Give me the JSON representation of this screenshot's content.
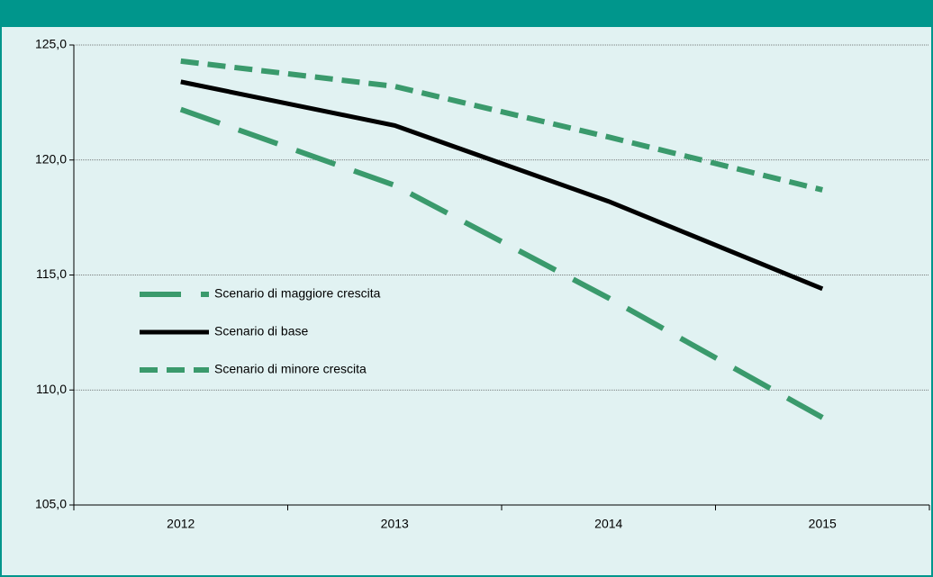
{
  "chart_data": {
    "type": "line",
    "categories": [
      "2012",
      "2013",
      "2014",
      "2015"
    ],
    "series": [
      {
        "name": "Scenario di maggiore crescita",
        "color": "#3a9a6c",
        "style": "long-dash",
        "values": [
          122.2,
          118.9,
          114.0,
          108.8
        ]
      },
      {
        "name": "Scenario di base",
        "color": "#000000",
        "style": "solid",
        "values": [
          123.4,
          121.5,
          118.2,
          114.4
        ]
      },
      {
        "name": "Scenario di minore crescita",
        "color": "#3a9a6c",
        "style": "short-dash",
        "values": [
          124.3,
          123.2,
          121.0,
          118.7
        ]
      }
    ],
    "ylim": [
      105,
      125
    ],
    "yticks": [
      {
        "value": 105,
        "label": "105,0"
      },
      {
        "value": 110,
        "label": "110,0"
      },
      {
        "value": 115,
        "label": "115,0"
      },
      {
        "value": 120,
        "label": "120,0"
      },
      {
        "value": 125,
        "label": "125,0"
      }
    ],
    "grid": true,
    "legend": "left"
  }
}
